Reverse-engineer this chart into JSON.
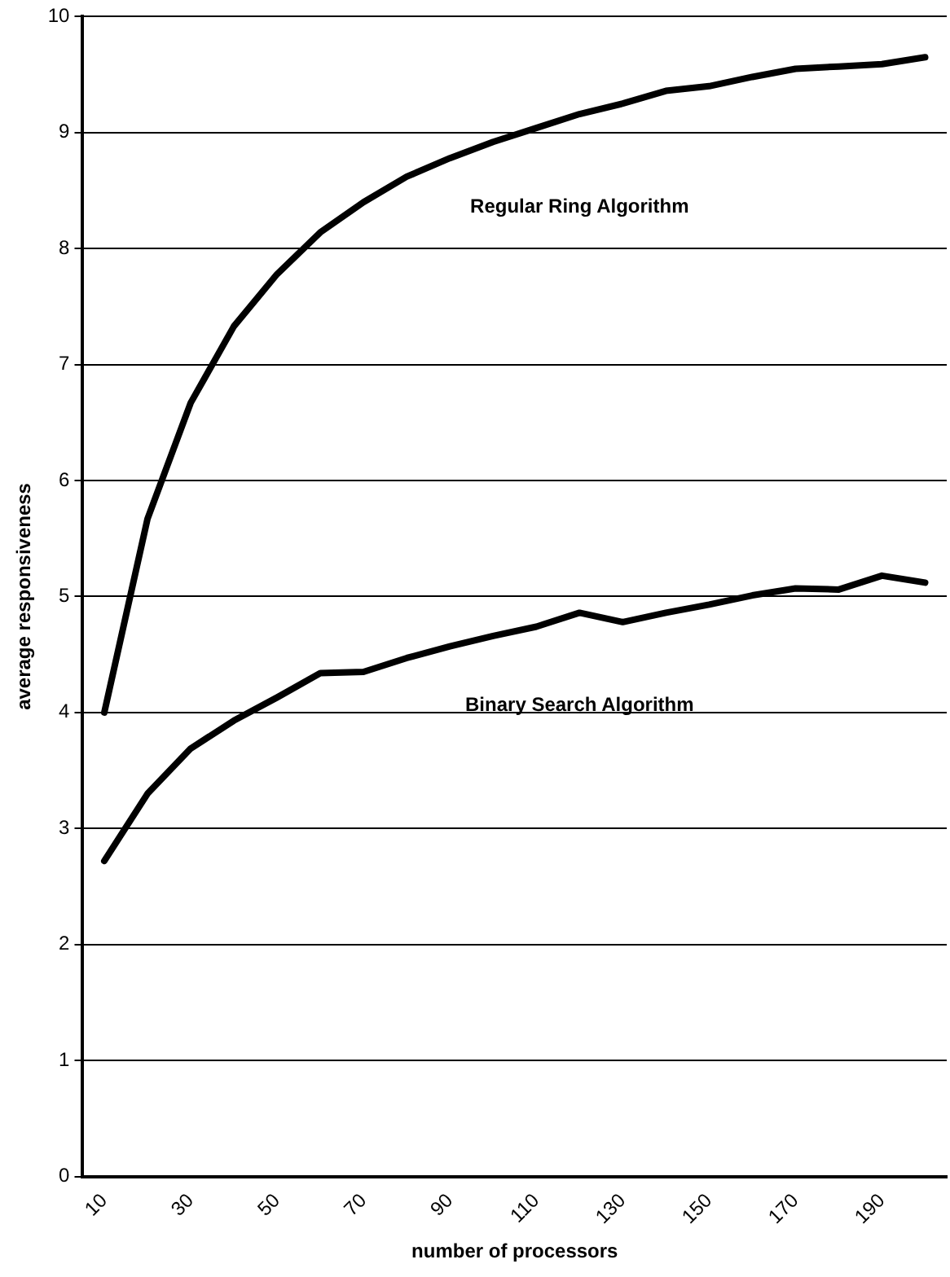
{
  "chart_data": {
    "type": "line",
    "xlabel": "number of processors",
    "ylabel": "average responsiveness",
    "categories": [
      "10",
      null,
      "30",
      null,
      "50",
      null,
      "70",
      null,
      "90",
      null,
      "110",
      null,
      "130",
      null,
      "150",
      null,
      "170",
      null,
      "190",
      null
    ],
    "series": [
      {
        "name": "Regular Ring Algorithm",
        "color": "#000000",
        "values": [
          4.0,
          5.67,
          6.67,
          7.33,
          7.78,
          8.14,
          8.4,
          8.62,
          8.78,
          8.92,
          9.04,
          9.16,
          9.25,
          9.36,
          9.4,
          9.48,
          9.55,
          9.57,
          9.59,
          9.65
        ]
      },
      {
        "name": "Binary Search Algorithm",
        "color": "#000000",
        "values": [
          2.72,
          3.3,
          3.69,
          3.93,
          4.13,
          4.34,
          4.35,
          4.47,
          4.57,
          4.66,
          4.74,
          4.86,
          4.78,
          4.86,
          4.93,
          5.01,
          5.07,
          5.06,
          5.18,
          5.12
        ]
      }
    ],
    "ylim": [
      0,
      10
    ],
    "yticks": [
      0,
      1,
      2,
      3,
      4,
      5,
      6,
      7,
      8,
      9,
      10
    ],
    "grid": "y",
    "legend": false,
    "marker": "none",
    "line_style": "solid"
  }
}
